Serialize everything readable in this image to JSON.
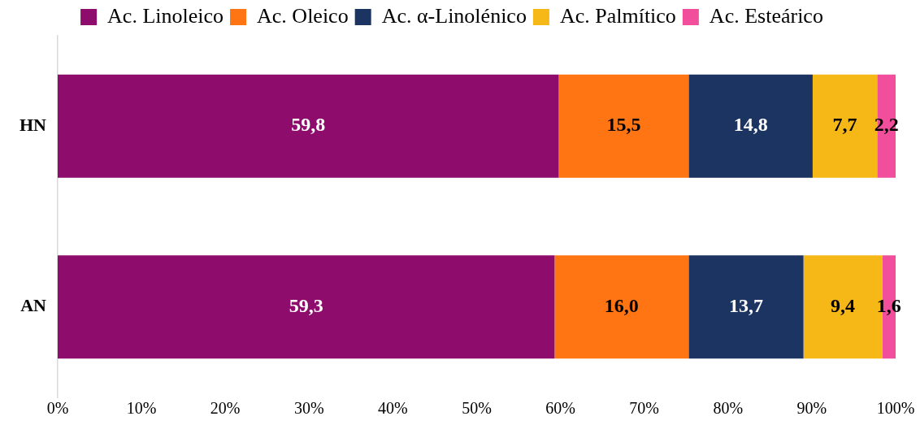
{
  "chart_data": {
    "type": "bar",
    "orientation": "horizontal",
    "stacked": true,
    "categories": [
      "HN",
      "AN"
    ],
    "series": [
      {
        "name": "Ac. Linoleico",
        "color": "#8e0c6b",
        "values": [
          59.8,
          59.3
        ],
        "value_labels": [
          "59,8",
          "59,3"
        ]
      },
      {
        "name": "Ac. Oleico",
        "color": "#ff7413",
        "values": [
          15.5,
          16.0
        ],
        "value_labels": [
          "15,5",
          "16,0"
        ]
      },
      {
        "name": "Ac. α-Linolénico",
        "color": "#1b3461",
        "values": [
          14.8,
          13.7
        ],
        "value_labels": [
          "14,8",
          "13,7"
        ]
      },
      {
        "name": "Ac. Palmítico",
        "color": "#f6b817",
        "values": [
          7.7,
          9.4
        ],
        "value_labels": [
          "7,7",
          "9,4"
        ]
      },
      {
        "name": "Ac. Esteárico",
        "color": "#f14e9c",
        "values": [
          2.2,
          1.6
        ],
        "value_labels": [
          "2,2",
          "1,6"
        ]
      }
    ],
    "xlim": [
      0,
      100
    ],
    "xticks": [
      {
        "value": 0,
        "label": "0%"
      },
      {
        "value": 10,
        "label": "10%"
      },
      {
        "value": 20,
        "label": "20%"
      },
      {
        "value": 30,
        "label": "30%"
      },
      {
        "value": 40,
        "label": "40%"
      },
      {
        "value": 50,
        "label": "50%"
      },
      {
        "value": 60,
        "label": "60%"
      },
      {
        "value": 70,
        "label": "70%"
      },
      {
        "value": 80,
        "label": "80%"
      },
      {
        "value": 90,
        "label": "90%"
      },
      {
        "value": 100,
        "label": "100%"
      }
    ],
    "grid": false,
    "legend": "top"
  }
}
